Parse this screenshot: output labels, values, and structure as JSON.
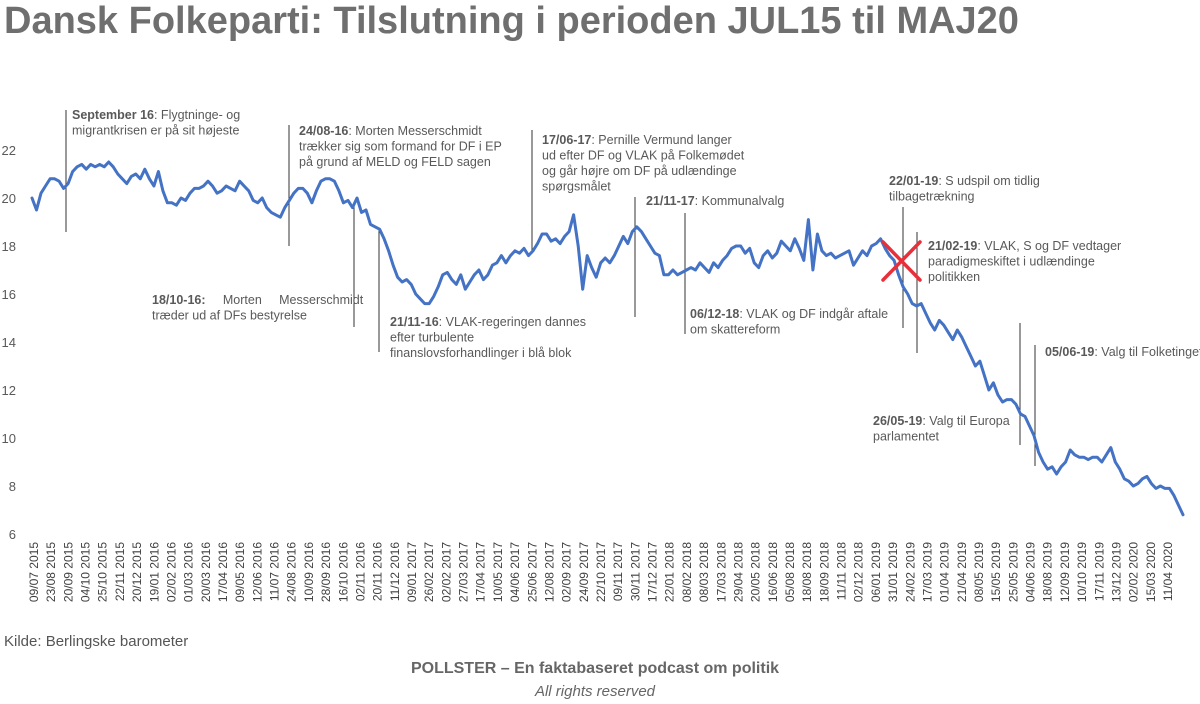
{
  "title": "Dansk Folkeparti: Tilslutning i perioden JUL15 til MAJ20",
  "source": "Kilde: Berlingske barometer",
  "footer": {
    "main": "POLLSTER – En faktabaseret podcast om politik",
    "sub": "All rights reserved"
  },
  "colors": {
    "line": "#4472C4",
    "cross": "#E8303A",
    "text": "#595959",
    "title": "#6F6F6F"
  },
  "chart_data": {
    "type": "line",
    "title": "Dansk Folkeparti: Tilslutning i perioden JUL15 til MAJ20",
    "xlabel": "",
    "ylabel": "",
    "ylim": [
      6,
      23
    ],
    "yticks": [
      6,
      8,
      10,
      12,
      14,
      16,
      18,
      20,
      22
    ],
    "grid": false,
    "x_tick_labels": [
      "09/07 2015",
      "23/08 2015",
      "20/09 2015",
      "04/10 2015",
      "25/10 2015",
      "22/11 2015",
      "20/12 2015",
      "19/01 2016",
      "02/02 2016",
      "01/03 2016",
      "20/03 2016",
      "17/04 2016",
      "09/05 2016",
      "12/06 2016",
      "11/07 2016",
      "24/08 2016",
      "10/09 2016",
      "28/09 2016",
      "16/10 2016",
      "02/11 2016",
      "20/11 2016",
      "11/12 2016",
      "09/01 2017",
      "26/02 2017",
      "02/02 2017",
      "27/03 2017",
      "17/04 2017",
      "10/05 2017",
      "04/06 2017",
      "25/06 2017",
      "12/08 2017",
      "02/09 2017",
      "24/09 2017",
      "22/10 2017",
      "09/11 2017",
      "30/11 2017",
      "17/12 2017",
      "22/01 2018",
      "08/02 2018",
      "08/03 2018",
      "17/03 2018",
      "29/04 2018",
      "20/05 2018",
      "16/06 2018",
      "05/08 2018",
      "18/08 2018",
      "18/09 2018",
      "11/11 2018",
      "02/12 2018",
      "06/01 2019",
      "31/01 2019",
      "24/02 2019",
      "17/03 2019",
      "01/04 2019",
      "21/04 2019",
      "08/05 2019",
      "15/05 2019",
      "25/05 2019",
      "04/06 2019",
      "18/08 2019",
      "12/09 2019",
      "10/10 2019",
      "17/11 2019",
      "13/12 2019",
      "02/02 2020",
      "15/03 2020",
      "11/04 2020"
    ],
    "series": [
      {
        "values": [
          20.0,
          19.5,
          20.2,
          20.5,
          20.8,
          20.8,
          20.7,
          20.4,
          20.6,
          21.1,
          21.3,
          21.4,
          21.2,
          21.4,
          21.3,
          21.4,
          21.3,
          21.5,
          21.3,
          21.0,
          20.8,
          20.6,
          20.9,
          21.0,
          20.8,
          21.2,
          20.8,
          20.5,
          21.1,
          20.3,
          19.8,
          19.8,
          19.7,
          20.0,
          19.9,
          20.2,
          20.4,
          20.4,
          20.5,
          20.7,
          20.5,
          20.2,
          20.3,
          20.5,
          20.4,
          20.3,
          20.7,
          20.5,
          20.3,
          19.9,
          19.8,
          20.0,
          19.6,
          19.4,
          19.3,
          19.2,
          19.6,
          19.9,
          20.2,
          20.4,
          20.4,
          20.2,
          19.8,
          20.3,
          20.7,
          20.8,
          20.8,
          20.7,
          20.3,
          19.8,
          19.9,
          19.6,
          20.0,
          19.4,
          19.5,
          18.9,
          18.8,
          18.7,
          18.3,
          17.8,
          17.2,
          16.7,
          16.5,
          16.6,
          16.4,
          16.0,
          15.8,
          15.6,
          15.6,
          15.9,
          16.3,
          16.8,
          16.9,
          16.6,
          16.4,
          16.8,
          16.2,
          16.5,
          16.8,
          17.0,
          16.6,
          16.8,
          17.2,
          17.3,
          17.6,
          17.3,
          17.6,
          17.8,
          17.7,
          17.9,
          17.6,
          17.8,
          18.1,
          18.5,
          18.5,
          18.2,
          18.3,
          18.1,
          18.4,
          18.6,
          19.3,
          18.0,
          16.2,
          17.6,
          17.1,
          16.7,
          17.3,
          17.5,
          17.3,
          17.6,
          18.0,
          18.4,
          18.1,
          18.6,
          18.8,
          18.6,
          18.3,
          18.0,
          17.7,
          17.6,
          16.8,
          16.8,
          17.0,
          16.8,
          16.9,
          17.0,
          17.1,
          17.0,
          17.3,
          17.1,
          16.9,
          17.3,
          17.1,
          17.4,
          17.6,
          17.9,
          18.0,
          18.0,
          17.7,
          17.9,
          17.3,
          17.1,
          17.6,
          17.8,
          17.5,
          17.7,
          18.2,
          18.0,
          17.8,
          18.3,
          17.9,
          17.4,
          19.1,
          17.0,
          18.5,
          17.8,
          17.6,
          17.7,
          17.5,
          17.6,
          17.7,
          17.8,
          17.2,
          17.5,
          17.8,
          17.6,
          18.0,
          18.1,
          18.3,
          17.9,
          17.6,
          17.4,
          16.8,
          16.3,
          16.0,
          15.6,
          15.5,
          15.6,
          15.2,
          14.8,
          14.5,
          14.9,
          14.7,
          14.4,
          14.1,
          14.5,
          14.2,
          13.8,
          13.4,
          13.0,
          13.2,
          12.6,
          12.0,
          12.3,
          11.8,
          11.5,
          11.6,
          11.6,
          11.4,
          11.0,
          10.9,
          10.5,
          10.1,
          9.4,
          9.0,
          8.7,
          8.8,
          8.5,
          8.8,
          9.0,
          9.5,
          9.3,
          9.2,
          9.2,
          9.1,
          9.2,
          9.2,
          9.0,
          9.3,
          9.6,
          9.0,
          8.7,
          8.3,
          8.2,
          8.0,
          8.1,
          8.3,
          8.4,
          8.1,
          7.9,
          8.0,
          7.9,
          7.9,
          7.6,
          7.2,
          6.8
        ]
      }
    ],
    "annotations": [
      {
        "bold": "September 16",
        "lines": [
          ": Flygtninge- og",
          "migrantkrisen er på sit højeste"
        ]
      },
      {
        "bold": "24/08-16",
        "lines": [
          ": Morten Messerschmidt",
          "trækker sig som formand for DF i EP",
          "på grund af MELD og FELD sagen"
        ]
      },
      {
        "bold": "18/10-16:",
        "lines": [
          "     Morten     Messerschmidt",
          "træder ud af DFs bestyrelse"
        ]
      },
      {
        "bold": "21/11-16",
        "lines": [
          ": VLAK-regeringen dannes",
          "efter turbulente",
          "finanslovsforhandlinger i blå blok"
        ]
      },
      {
        "bold": "17/06-17",
        "lines": [
          ": Pernille Vermund langer",
          "ud efter DF og VLAK på Folkemødet",
          "og går højre om DF på udlændinge",
          "spørgsmålet"
        ]
      },
      {
        "bold": "21/11-17",
        "lines": [
          ": Kommunalvalg"
        ]
      },
      {
        "bold": "06/12-18",
        "lines": [
          ": VLAK og DF indgår aftale",
          "om skattereform"
        ]
      },
      {
        "bold": "22/01-19",
        "lines": [
          ": S udspil om tidlig",
          "tilbagetrækning"
        ]
      },
      {
        "bold": "21/02-19",
        "lines": [
          ": VLAK, S og DF vedtager",
          "paradigmeskiftet i udlændinge",
          "politikken"
        ]
      },
      {
        "bold": "26/05-19",
        "lines": [
          ": Valg til Europa",
          "parlamentet"
        ]
      },
      {
        "bold": "05/06-19",
        "lines": [
          ": Valg til Folketinget"
        ]
      }
    ]
  }
}
